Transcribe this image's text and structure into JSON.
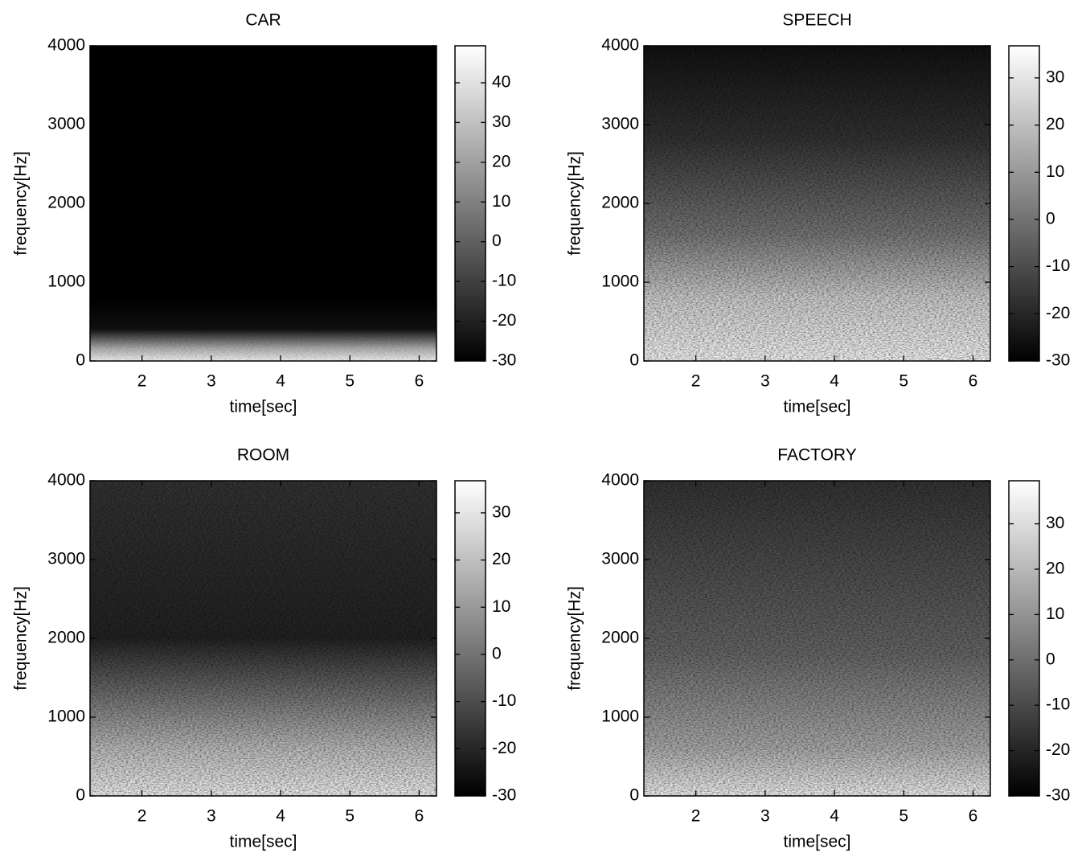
{
  "chart_data": [
    {
      "type": "heatmap",
      "title": "CAR",
      "xlabel": "time[sec]",
      "ylabel": "frequency[Hz]",
      "xlim": [
        1.25,
        6.25
      ],
      "xticks": [
        2,
        3,
        4,
        5,
        6
      ],
      "ylim": [
        0,
        4000
      ],
      "yticks": [
        0,
        1000,
        2000,
        3000,
        4000
      ],
      "colormap": "gray",
      "clim": [
        -30,
        49.3
      ],
      "cticks": [
        -30,
        -20,
        -10,
        0,
        10,
        20,
        30,
        40
      ]
    },
    {
      "type": "heatmap",
      "title": "SPEECH",
      "xlabel": "time[sec]",
      "ylabel": "frequency[Hz]",
      "xlim": [
        1.25,
        6.25
      ],
      "xticks": [
        2,
        3,
        4,
        5,
        6
      ],
      "ylim": [
        0,
        4000
      ],
      "yticks": [
        0,
        1000,
        2000,
        3000,
        4000
      ],
      "colormap": "gray",
      "clim": [
        -30,
        36.8
      ],
      "cticks": [
        -30,
        -20,
        -10,
        0,
        10,
        20,
        30
      ]
    },
    {
      "type": "heatmap",
      "title": "ROOM",
      "xlabel": "time[sec]",
      "ylabel": "frequency[Hz]",
      "xlim": [
        1.25,
        6.25
      ],
      "xticks": [
        2,
        3,
        4,
        5,
        6
      ],
      "ylim": [
        0,
        4000
      ],
      "yticks": [
        0,
        1000,
        2000,
        3000,
        4000
      ],
      "colormap": "gray",
      "clim": [
        -30,
        36.8
      ],
      "cticks": [
        -30,
        -20,
        -10,
        0,
        10,
        20,
        30
      ]
    },
    {
      "type": "heatmap",
      "title": "FACTORY",
      "xlabel": "time[sec]",
      "ylabel": "frequency[Hz]",
      "xlim": [
        1.25,
        6.25
      ],
      "xticks": [
        2,
        3,
        4,
        5,
        6
      ],
      "ylim": [
        0,
        4000
      ],
      "yticks": [
        0,
        1000,
        2000,
        3000,
        4000
      ],
      "colormap": "gray",
      "clim": [
        -30,
        39.5
      ],
      "cticks": [
        -30,
        -20,
        -10,
        0,
        10,
        20,
        30
      ]
    }
  ]
}
